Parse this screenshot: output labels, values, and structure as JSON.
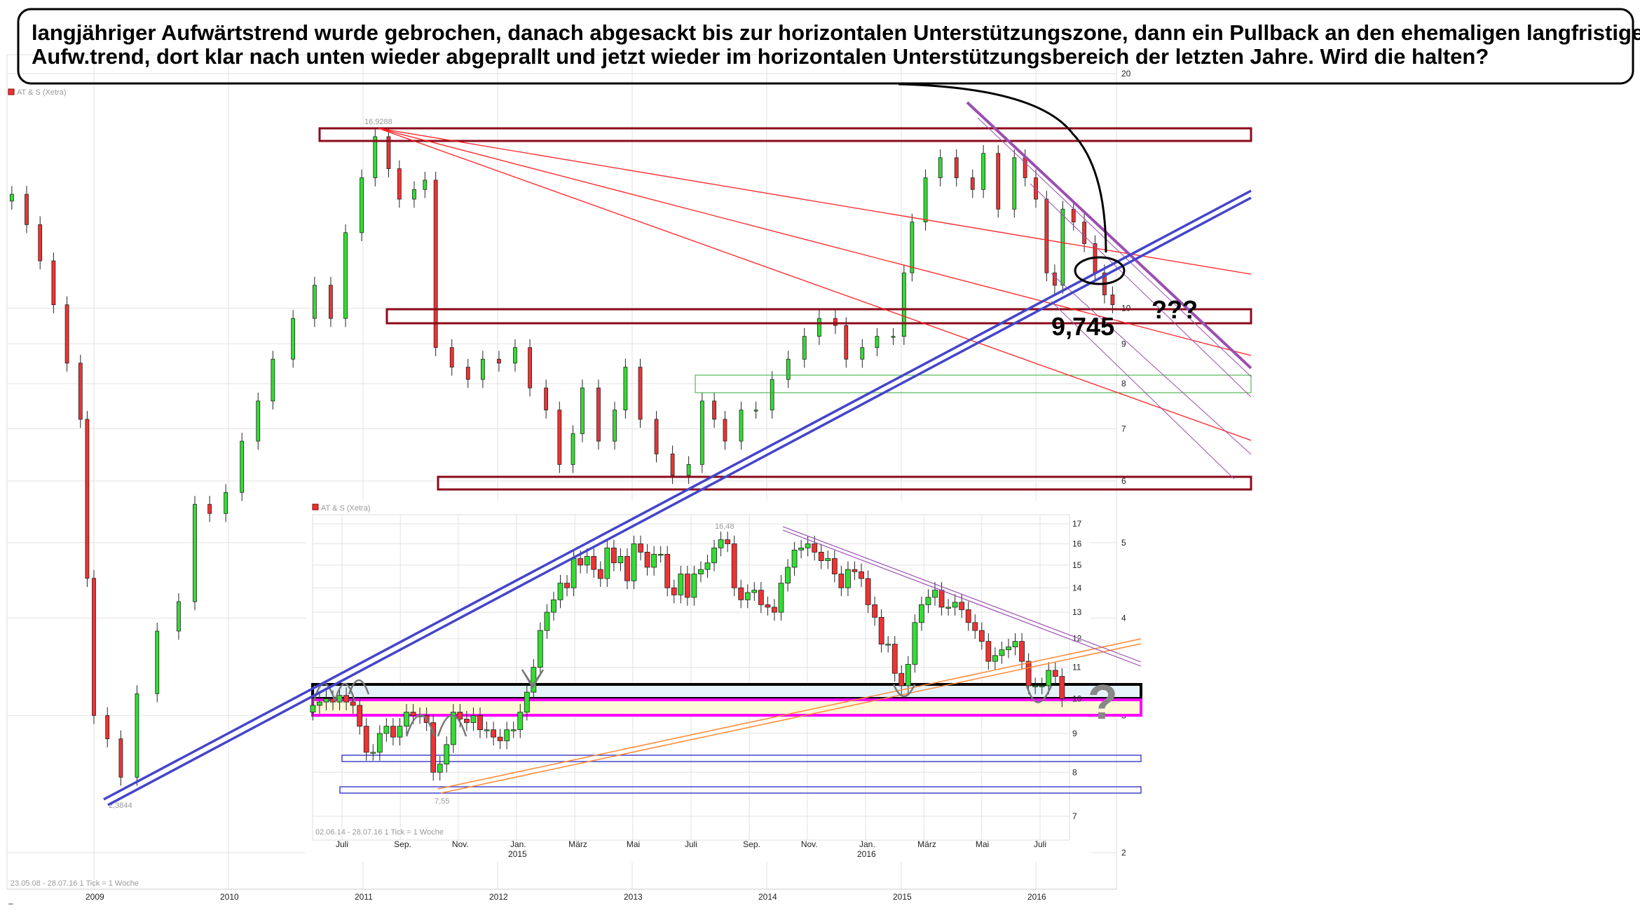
{
  "annotation": {
    "line1": "langjähriger Aufwärtstrend wurde gebrochen, danach abgesackt bis zur horizontalen Unterstützungszone, dann ein Pullback an den ehemaligen langfristigen",
    "line2": "Aufw.trend, dort klar nach unten wieder abgeprallt  und jetzt wieder im horizontalen Unterstützungsbereich der letzten Jahre. Wird die halten?",
    "question_marks": "???",
    "level_label": "9,745",
    "inset_question": "?"
  },
  "colors": {
    "up_candle": "#33dd33",
    "down_candle": "#ee3333",
    "zone": "#8b0a1a",
    "trendline_blue": "#4444cc",
    "trendline_purple": "#9a4fb0",
    "fan_red": "#ff2020",
    "orange": "#ff8833",
    "magenta": "#ff00ff"
  },
  "chart_data": [
    {
      "type": "candlestick",
      "legend": "AT & S (Xetra)",
      "period": "23.05.08 - 28.07.16  1 Tick = 1 Woche",
      "scale": "log",
      "ylim": [
        2,
        20
      ],
      "y_ticks": [
        "20",
        "10",
        "9",
        "8",
        "7",
        "6",
        "5",
        "4",
        "3",
        "2"
      ],
      "x_ticks": [
        "2009",
        "2010",
        "2011",
        "2012",
        "2013",
        "2014",
        "2015",
        "2016"
      ],
      "grid": true,
      "high_label": "16,9288",
      "low_label": "2,3844",
      "x": [
        2008.39,
        2008.5,
        2008.6,
        2008.7,
        2008.8,
        2008.9,
        2008.95,
        2009.0,
        2009.1,
        2009.2,
        2009.32,
        2009.47,
        2009.63,
        2009.75,
        2009.86,
        2009.98,
        2010.1,
        2010.22,
        2010.33,
        2010.48,
        2010.64,
        2010.76,
        2010.87,
        2010.99,
        2011.09,
        2011.19,
        2011.27,
        2011.38,
        2011.46,
        2011.54,
        2011.66,
        2011.78,
        2011.89,
        2012.01,
        2012.13,
        2012.24,
        2012.36,
        2012.46,
        2012.56,
        2012.63,
        2012.75,
        2012.87,
        2012.95,
        2013.06,
        2013.18,
        2013.3,
        2013.42,
        2013.52,
        2013.61,
        2013.69,
        2013.81,
        2013.92,
        2014.04,
        2014.16,
        2014.28,
        2014.39,
        2014.51,
        2014.59,
        2014.71,
        2014.82,
        2014.94,
        2015.02,
        2015.08,
        2015.18,
        2015.29,
        2015.41,
        2015.53,
        2015.61,
        2015.72,
        2015.84,
        2015.92,
        2016.0,
        2016.08,
        2016.14,
        2016.2,
        2016.28,
        2016.36,
        2016.44,
        2016.51,
        2016.57
      ],
      "close": [
        14.0,
        12.8,
        11.5,
        10.1,
        8.5,
        7.2,
        4.5,
        3.0,
        2.8,
        2.5,
        3.2,
        3.85,
        4.2,
        5.6,
        5.45,
        5.8,
        6.75,
        7.6,
        8.6,
        9.7,
        10.7,
        9.7,
        12.5,
        14.7,
        16.6,
        15.1,
        13.8,
        14.2,
        14.6,
        8.9,
        8.4,
        8.1,
        8.6,
        8.5,
        8.9,
        7.9,
        7.4,
        6.3,
        6.9,
        7.9,
        6.75,
        7.4,
        8.4,
        7.2,
        6.5,
        6.1,
        6.3,
        7.6,
        7.2,
        6.75,
        7.4,
        7.4,
        8.1,
        8.6,
        9.2,
        9.7,
        9.5,
        8.6,
        8.9,
        9.2,
        9.2,
        11.1,
        12.9,
        14.7,
        15.6,
        14.7,
        14.2,
        15.8,
        13.4,
        15.6,
        14.7,
        13.8,
        11.1,
        10.7,
        13.4,
        12.9,
        12.1,
        11.1,
        10.4,
        10.1
      ]
    },
    {
      "type": "candlestick",
      "legend": "AT & S (Xetra)",
      "period": "02.06.14 - 28.07.16  1 Tick = 1 Woche",
      "interval": "1 Woche",
      "scale": "log",
      "ylim": [
        7,
        17
      ],
      "y_ticks": [
        "17",
        "16",
        "15",
        "14",
        "13",
        "12",
        "11",
        "10",
        "9",
        "8",
        "7"
      ],
      "x_ticks": [
        "Juli",
        "Sep.",
        "Nov.",
        "Jan.",
        "März",
        "Mai",
        "Juli",
        "Sep.",
        "Nov.",
        "Jan.",
        "März",
        "Mai",
        "Juli"
      ],
      "x_year_ticks": [
        "2015",
        "2016"
      ],
      "grid": true,
      "high_label": "16,48",
      "low_label": "7,55",
      "close": [
        9.8,
        9.9,
        10.0,
        9.9,
        10.1,
        9.9,
        9.8,
        9.2,
        8.5,
        8.5,
        9.0,
        9.2,
        8.9,
        9.2,
        9.6,
        9.5,
        9.5,
        9.3,
        8.0,
        8.2,
        8.7,
        9.6,
        9.4,
        9.3,
        9.5,
        9.1,
        9.1,
        8.9,
        8.8,
        9.1,
        9.1,
        9.6,
        10.2,
        11.0,
        12.3,
        13.0,
        13.5,
        14.2,
        14.0,
        15.3,
        15.0,
        15.4,
        14.8,
        14.4,
        15.8,
        15.1,
        15.4,
        14.3,
        16.0,
        15.6,
        14.9,
        15.5,
        15.5,
        14.0,
        13.7,
        14.6,
        13.6,
        14.6,
        14.8,
        15.1,
        15.8,
        16.2,
        16.0,
        14.0,
        13.5,
        13.8,
        13.9,
        13.3,
        13.2,
        13.0,
        14.2,
        14.9,
        15.7,
        15.8,
        16.0,
        15.6,
        15.2,
        15.3,
        14.6,
        14.0,
        14.8,
        14.7,
        14.4,
        13.3,
        12.8,
        11.8,
        11.8,
        10.8,
        10.4,
        11.1,
        12.6,
        13.3,
        13.6,
        13.9,
        13.2,
        13.2,
        13.4,
        13.1,
        12.6,
        12.3,
        11.9,
        11.2,
        11.4,
        11.6,
        11.7,
        11.9,
        11.2,
        10.4,
        10.4,
        10.4,
        10.9,
        10.7,
        10.0
      ]
    }
  ]
}
